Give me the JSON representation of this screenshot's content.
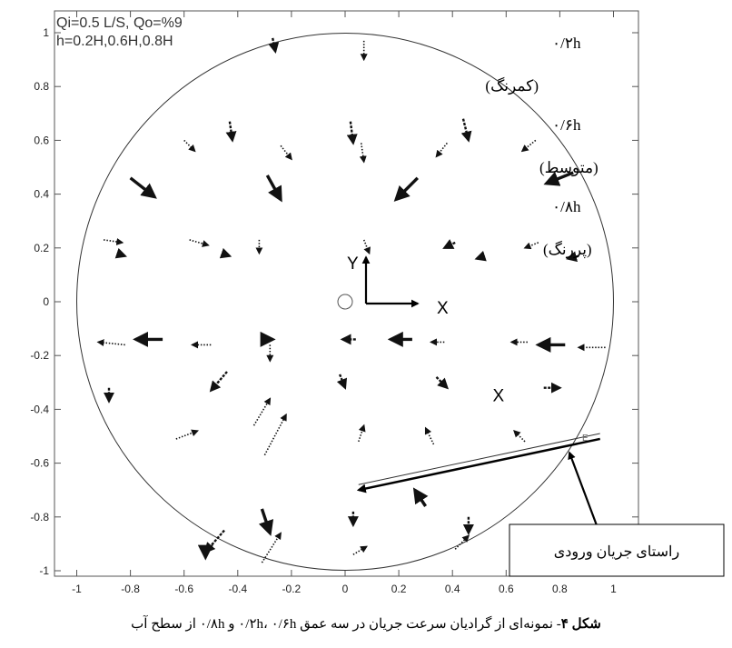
{
  "chart_data": {
    "type": "scatter",
    "subtype": "vector-field",
    "xlim": [
      -1.1,
      1.1
    ],
    "ylim": [
      -1.1,
      1.1
    ],
    "xticks": [
      "-1",
      "-0.8",
      "-0.6",
      "-0.4",
      "-0.2",
      "0",
      "0.2",
      "0.4",
      "0.6",
      "0.8",
      "1"
    ],
    "yticks": [
      "1",
      "0.8",
      "0.6",
      "0.4",
      "0.2",
      "0",
      "-0.2",
      "-0.4",
      "-0.6",
      "-0.8",
      "-1"
    ],
    "grid": false,
    "annotation_lines": [
      "Qi=0.5 L/S, Qo=%9",
      "h=0.2H,0.6H,0.8H"
    ],
    "legend": [
      {
        "label": "۰/۲h",
        "style": "dotted",
        "desc": "(کمرنگ)"
      },
      {
        "label": "۰/۶h",
        "style": "dashed",
        "desc": "(متوسط)"
      },
      {
        "label": "۰/۸h",
        "style": "bold",
        "desc": "(پررنگ)"
      }
    ],
    "boundary_circle": {
      "cx": 0,
      "cy": 0,
      "r": 1.0
    },
    "center_marker": {
      "x": 0,
      "y": 0
    },
    "axis_indicator": {
      "x_label": "X",
      "y_label": "Y"
    },
    "outlet_label": {
      "text": "X",
      "x": 0.55,
      "y": -0.37
    },
    "inflow_line": {
      "from": [
        0.95,
        -0.51
      ],
      "to": [
        0.05,
        -0.7
      ],
      "label": "راستای جریان ورودی"
    },
    "vectors": [
      {
        "x": 0.07,
        "y": 0.97,
        "dx": 0,
        "dy": -0.07,
        "level": "dotted"
      },
      {
        "x": -0.27,
        "y": 0.98,
        "dx": 0.01,
        "dy": -0.05,
        "level": "dashed"
      },
      {
        "x": -0.43,
        "y": 0.67,
        "dx": 0.01,
        "dy": -0.07,
        "level": "dashed"
      },
      {
        "x": 0.02,
        "y": 0.67,
        "dx": 0.01,
        "dy": -0.08,
        "level": "dashed"
      },
      {
        "x": 0.44,
        "y": 0.68,
        "dx": 0.02,
        "dy": -0.08,
        "level": "dashed"
      },
      {
        "x": -0.6,
        "y": 0.6,
        "dx": 0.04,
        "dy": -0.04,
        "level": "dotted"
      },
      {
        "x": -0.24,
        "y": 0.58,
        "dx": 0.04,
        "dy": -0.05,
        "level": "dotted"
      },
      {
        "x": 0.06,
        "y": 0.59,
        "dx": 0.01,
        "dy": -0.07,
        "level": "dotted"
      },
      {
        "x": 0.38,
        "y": 0.59,
        "dx": -0.04,
        "dy": -0.05,
        "level": "dotted"
      },
      {
        "x": 0.71,
        "y": 0.6,
        "dx": -0.05,
        "dy": -0.04,
        "level": "dotted"
      },
      {
        "x": -0.8,
        "y": 0.46,
        "dx": 0.09,
        "dy": -0.07,
        "level": "bold"
      },
      {
        "x": -0.29,
        "y": 0.47,
        "dx": 0.05,
        "dy": -0.09,
        "level": "bold"
      },
      {
        "x": 0.27,
        "y": 0.46,
        "dx": -0.08,
        "dy": -0.08,
        "level": "bold"
      },
      {
        "x": 0.85,
        "y": 0.48,
        "dx": -0.1,
        "dy": -0.04,
        "level": "bold"
      },
      {
        "x": -0.9,
        "y": 0.23,
        "dx": 0.07,
        "dy": -0.01,
        "level": "dotted"
      },
      {
        "x": -0.58,
        "y": 0.23,
        "dx": 0.07,
        "dy": -0.02,
        "level": "dotted"
      },
      {
        "x": -0.32,
        "y": 0.23,
        "dx": 0.0,
        "dy": -0.05,
        "level": "dotted"
      },
      {
        "x": 0.07,
        "y": 0.23,
        "dx": 0.02,
        "dy": -0.05,
        "level": "dotted"
      },
      {
        "x": 0.41,
        "y": 0.22,
        "dx": -0.04,
        "dy": -0.02,
        "level": "dashed"
      },
      {
        "x": 0.72,
        "y": 0.22,
        "dx": -0.05,
        "dy": -0.02,
        "level": "dotted"
      },
      {
        "x": -0.85,
        "y": 0.18,
        "dx": 0.03,
        "dy": -0.01,
        "level": "dashed"
      },
      {
        "x": -0.46,
        "y": 0.18,
        "dx": 0.03,
        "dy": -0.01,
        "level": "dashed"
      },
      {
        "x": 0.52,
        "y": 0.17,
        "dx": -0.03,
        "dy": -0.01,
        "level": "dashed"
      },
      {
        "x": 0.87,
        "y": 0.17,
        "dx": -0.04,
        "dy": -0.01,
        "level": "dashed"
      },
      {
        "x": -0.82,
        "y": -0.16,
        "dx": -0.1,
        "dy": 0.01,
        "level": "dotted"
      },
      {
        "x": -0.5,
        "y": -0.16,
        "dx": -0.07,
        "dy": 0.0,
        "level": "dotted"
      },
      {
        "x": -0.68,
        "y": -0.14,
        "dx": -0.1,
        "dy": 0.0,
        "level": "bold"
      },
      {
        "x": -0.31,
        "y": -0.14,
        "dx": 0.04,
        "dy": 0.0,
        "level": "bold"
      },
      {
        "x": -0.28,
        "y": -0.16,
        "dx": 0.0,
        "dy": -0.06,
        "level": "dotted"
      },
      {
        "x": 0.04,
        "y": -0.14,
        "dx": -0.05,
        "dy": 0.0,
        "level": "dashed"
      },
      {
        "x": 0.25,
        "y": -0.14,
        "dx": -0.08,
        "dy": 0.0,
        "level": "bold"
      },
      {
        "x": 0.37,
        "y": -0.15,
        "dx": -0.05,
        "dy": 0.0,
        "level": "dotted"
      },
      {
        "x": 0.68,
        "y": -0.15,
        "dx": -0.06,
        "dy": 0.0,
        "level": "dotted"
      },
      {
        "x": 0.82,
        "y": -0.16,
        "dx": -0.1,
        "dy": 0.0,
        "level": "bold"
      },
      {
        "x": 0.97,
        "y": -0.17,
        "dx": -0.1,
        "dy": 0.0,
        "level": "dotted"
      },
      {
        "x": -0.88,
        "y": -0.32,
        "dx": 0.0,
        "dy": -0.05,
        "level": "dashed"
      },
      {
        "x": -0.44,
        "y": -0.26,
        "dx": -0.06,
        "dy": -0.07,
        "level": "dashed"
      },
      {
        "x": -0.02,
        "y": -0.27,
        "dx": 0.02,
        "dy": -0.05,
        "level": "dashed"
      },
      {
        "x": 0.34,
        "y": -0.28,
        "dx": 0.04,
        "dy": -0.04,
        "level": "dashed"
      },
      {
        "x": 0.74,
        "y": -0.32,
        "dx": 0.06,
        "dy": 0.0,
        "level": "dashed"
      },
      {
        "x": -0.34,
        "y": -0.46,
        "dx": 0.06,
        "dy": 0.1,
        "level": "dotted"
      },
      {
        "x": 0.05,
        "y": -0.52,
        "dx": 0.02,
        "dy": 0.06,
        "level": "dotted"
      },
      {
        "x": 0.33,
        "y": -0.53,
        "dx": -0.03,
        "dy": 0.06,
        "level": "dotted"
      },
      {
        "x": 0.67,
        "y": -0.52,
        "dx": -0.04,
        "dy": 0.04,
        "level": "dotted"
      },
      {
        "x": -0.63,
        "y": -0.51,
        "dx": 0.08,
        "dy": 0.03,
        "level": "dotted"
      },
      {
        "x": -0.3,
        "y": -0.57,
        "dx": 0.08,
        "dy": 0.15,
        "level": "dotted"
      },
      {
        "x": 0.3,
        "y": -0.76,
        "dx": -0.04,
        "dy": 0.06,
        "level": "bold"
      },
      {
        "x": -0.31,
        "y": -0.77,
        "dx": 0.03,
        "dy": -0.09,
        "level": "bold"
      },
      {
        "x": 0.03,
        "y": -0.78,
        "dx": 0.0,
        "dy": -0.05,
        "level": "dashed"
      },
      {
        "x": 0.46,
        "y": -0.8,
        "dx": 0.0,
        "dy": -0.06,
        "level": "dashed"
      },
      {
        "x": -0.45,
        "y": -0.85,
        "dx": -0.07,
        "dy": -0.08,
        "level": "dashed"
      },
      {
        "x": -0.31,
        "y": -0.97,
        "dx": 0.07,
        "dy": 0.11,
        "level": "dotted"
      },
      {
        "x": 0.41,
        "y": -0.92,
        "dx": 0.05,
        "dy": 0.05,
        "level": "dotted"
      },
      {
        "x": -0.52,
        "y": -0.93,
        "dx": 0.0,
        "dy": -0.02,
        "level": "bold"
      },
      {
        "x": 0.03,
        "y": -0.94,
        "dx": 0.05,
        "dy": 0.03,
        "level": "dotted"
      },
      {
        "x": 0.67,
        "y": -0.92,
        "dx": 0.05,
        "dy": 0.06,
        "level": "dotted"
      }
    ]
  },
  "caption": {
    "prefix": "شکل ۴",
    "text": "- نمونه‌ای از گرادیان سرعت جریان در سه عمق ۰/۲h، ۰/۶h و ۰/۸h از سطح آب"
  },
  "colors": {
    "axis": "#555555",
    "vector": "#111111"
  }
}
